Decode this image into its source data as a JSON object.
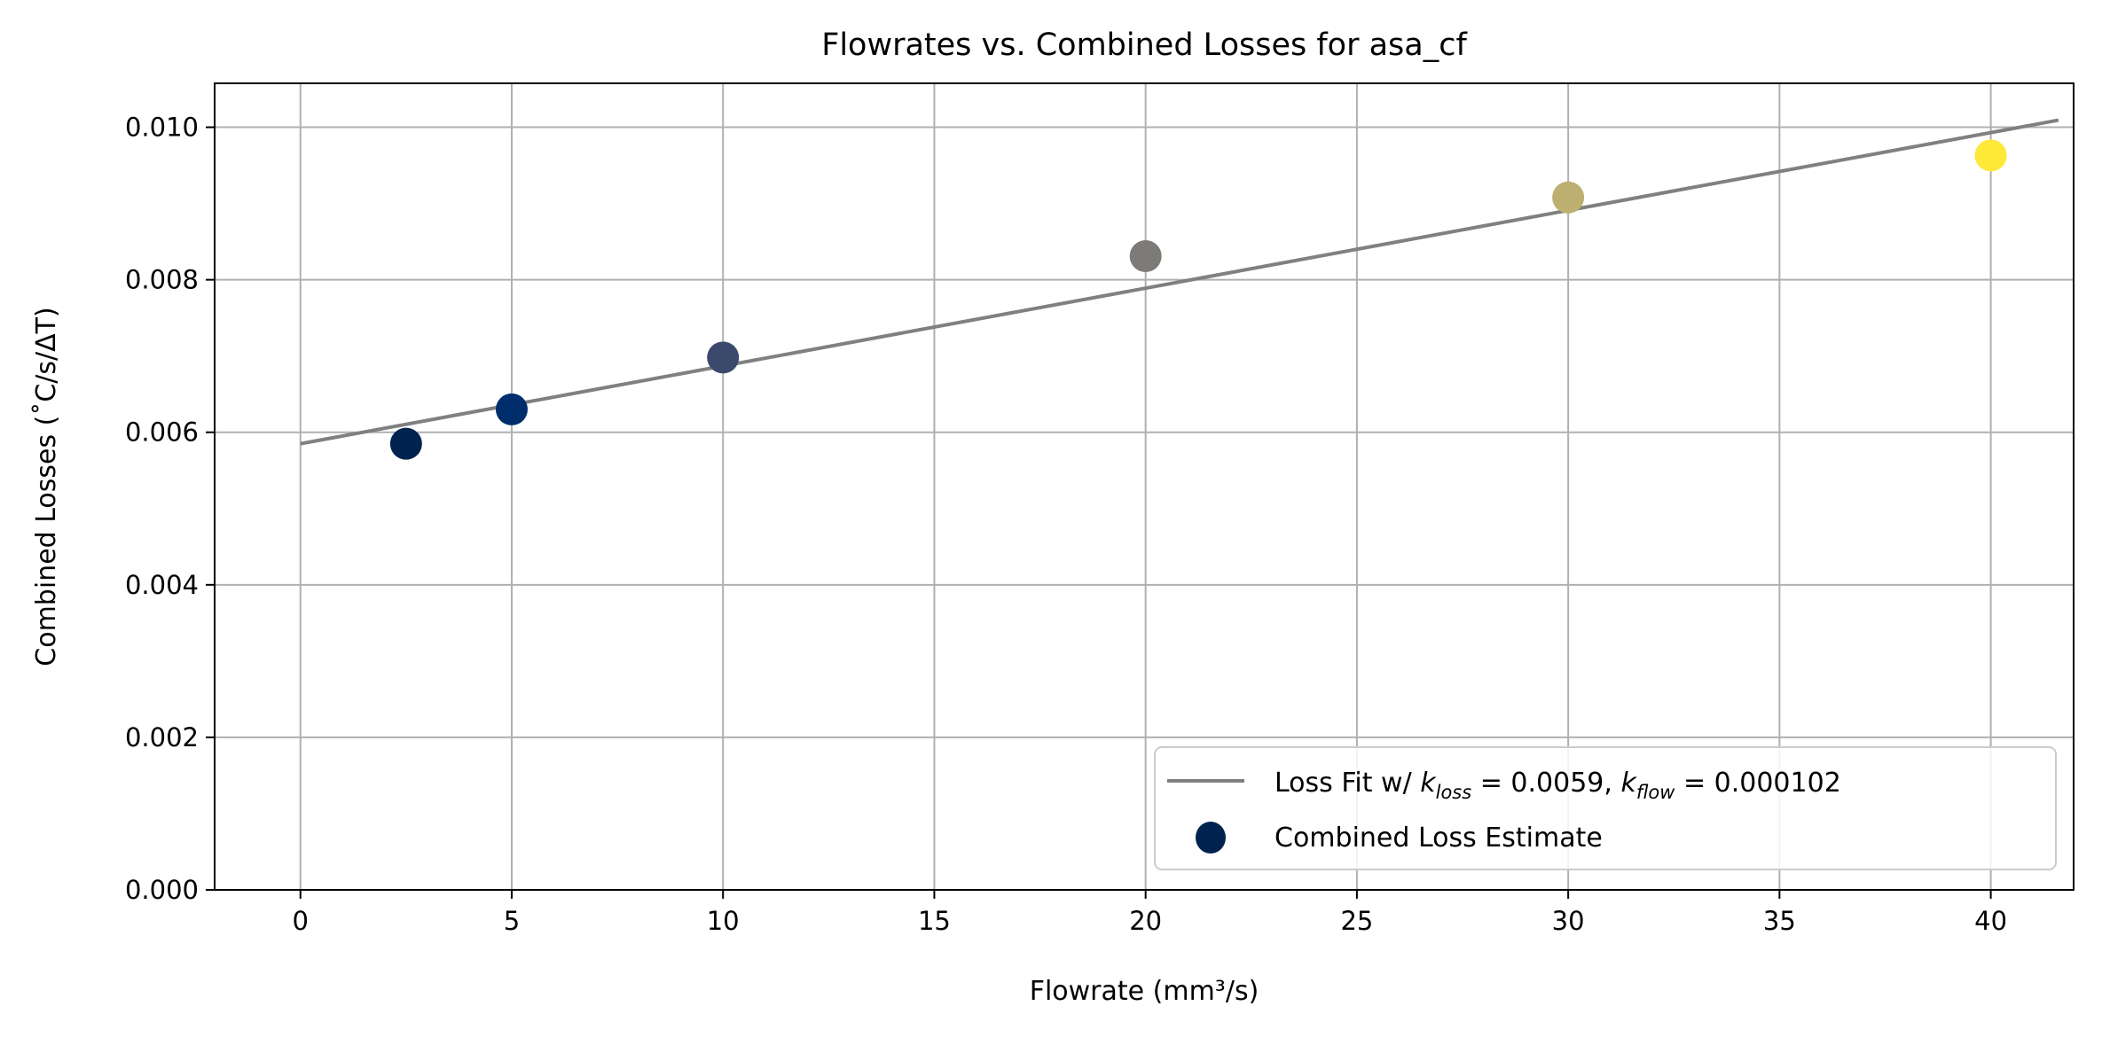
{
  "chart_data": {
    "type": "scatter",
    "title": "Flowrates vs. Combined Losses for asa_cf",
    "xlabel": "Flowrate  (mm³/s)",
    "ylabel": "Combined Losses (˚C/s/ΔT)",
    "xlim": [
      -2.03,
      41.96
    ],
    "ylim": [
      0,
      0.010576
    ],
    "grid": true,
    "xticks": [
      0,
      5,
      10,
      15,
      20,
      25,
      30,
      35,
      40
    ],
    "xtick_labels": [
      "0",
      "5",
      "10",
      "15",
      "20",
      "25",
      "30",
      "35",
      "40"
    ],
    "yticks": [
      0,
      0.002,
      0.004,
      0.006,
      0.008,
      0.01
    ],
    "ytick_labels": [
      "0.000",
      "0.002",
      "0.004",
      "0.006",
      "0.008",
      "0.010"
    ],
    "series": [
      {
        "name": "Combined Loss Estimate",
        "kind": "scatter",
        "x": [
          2.5,
          5,
          10,
          20,
          30,
          40
        ],
        "y": [
          0.00585,
          0.0063,
          0.00698,
          0.00831,
          0.00908,
          0.00963
        ],
        "colors": [
          "#00224e",
          "#002e6c",
          "#3b496c",
          "#7c7b78",
          "#bcaf6f",
          "#fee838"
        ]
      },
      {
        "name": "Loss Fit w/ k_loss = 0.0059, k_flow = 0.000102",
        "kind": "line",
        "x": [
          0,
          41.6
        ],
        "y": [
          0.00585,
          0.010093
        ],
        "color": "#808080"
      }
    ],
    "legend": {
      "placement": "lower-right",
      "fit_label": {
        "prefix": "Loss Fit w/ ",
        "k1": "k",
        "k1_sub": "loss",
        "k1_val": " = 0.0059, ",
        "k2": "k",
        "k2_sub": "flow",
        "k2_val": " = 0.000102"
      },
      "scatter_label": "Combined Loss Estimate",
      "marker_color": "#00224e"
    }
  }
}
